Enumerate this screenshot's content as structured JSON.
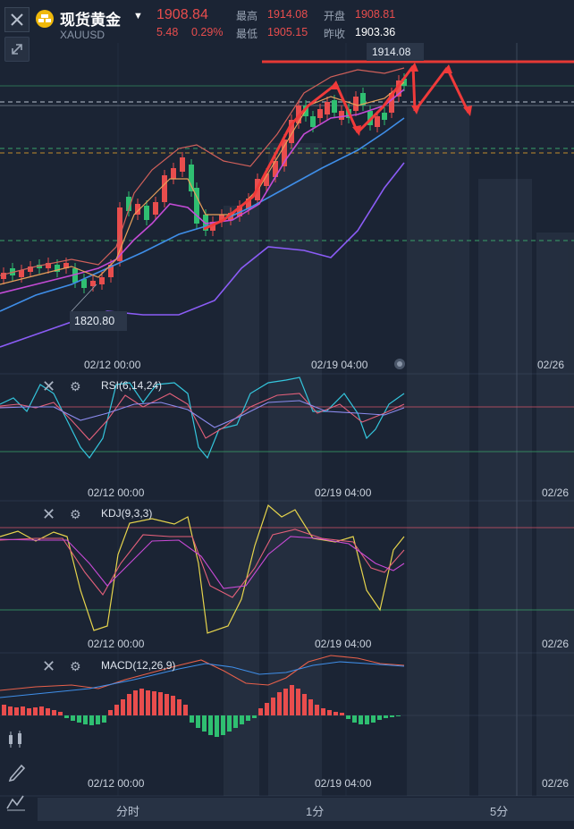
{
  "header": {
    "symbol_name": "现货黄金",
    "symbol_code": "XAUUSD",
    "last_price": "1908.84",
    "change": "5.48",
    "change_pct": "0.29%",
    "stats": [
      {
        "label": "最高",
        "value": "1914.08"
      },
      {
        "label": "开盘",
        "value": "1908.81"
      },
      {
        "label": "最低",
        "value": "1905.15"
      },
      {
        "label": "昨收",
        "value": "1903.36"
      }
    ]
  },
  "main_chart": {
    "high_marker": "1914.08",
    "low_marker": "1820.80",
    "time_labels": [
      "02/12 00:00",
      "02/19 04:00",
      "02/26"
    ]
  },
  "indicators": {
    "rsi": {
      "label": "RSI(6,14,24)",
      "time_labels": [
        "02/12 00:00",
        "02/19 04:00",
        "02/26"
      ]
    },
    "kdj": {
      "label": "KDJ(9,3,3)",
      "time_labels": [
        "02/12 00:00",
        "02/19 04:00",
        "02/26"
      ]
    },
    "macd": {
      "label": "MACD(12,26,9)",
      "time_labels": [
        "02/12 00:00",
        "02/19 04:00",
        "02/26"
      ]
    }
  },
  "tabs": [
    "分时",
    "1分",
    "5分"
  ],
  "colors": {
    "up": "#e84d4d",
    "down": "#2fbf71",
    "background": "#1b2434",
    "ma_blue": "#3f8ee8",
    "ma_purple": "#b04bd6",
    "boll": "#8b5cf6",
    "arrow": "#f03a3a"
  },
  "icons": [
    "close-icon",
    "gold-coin-icon",
    "chevron-down-icon",
    "collapse-icon",
    "gear-icon",
    "candlestick-icon",
    "pen-icon",
    "wave-icon"
  ]
}
